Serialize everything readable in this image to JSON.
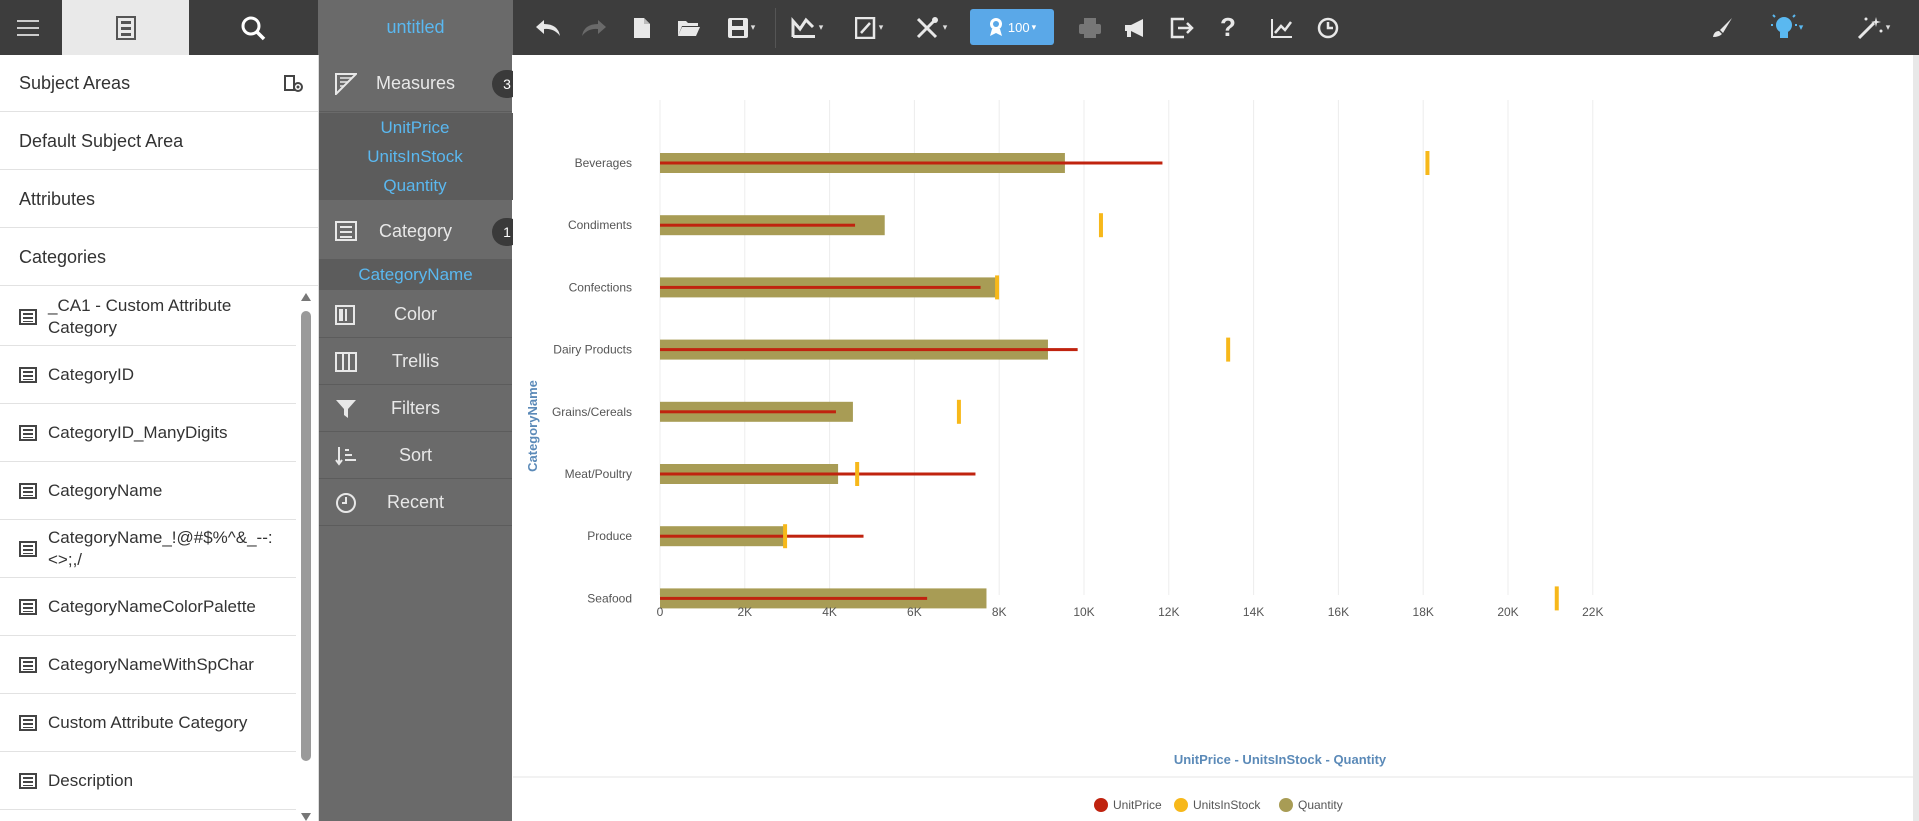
{
  "toolbar": {
    "title": "untitled",
    "perf_value": "100"
  },
  "sidebar": {
    "rows": [
      "Subject Areas",
      "Default Subject Area",
      "Attributes",
      "Categories"
    ],
    "items": [
      "_CA1 - Custom Attribute Category",
      "CategoryID",
      "CategoryID_ManyDigits",
      "CategoryName",
      "CategoryName_!@#$%^&_--:<>;,/",
      "CategoryNameColorPalette",
      "CategoryNameWithSpChar",
      "Custom Attribute Category",
      "Description"
    ]
  },
  "shelf": {
    "measures_label": "Measures",
    "measures_count": "3",
    "measures": [
      "UnitPrice",
      "UnitsInStock",
      "Quantity"
    ],
    "category_label": "Category",
    "category_count": "1",
    "category_field": "CategoryName",
    "color_label": "Color",
    "trellis_label": "Trellis",
    "filters_label": "Filters",
    "sort_label": "Sort",
    "recent_label": "Recent"
  },
  "colors": {
    "unitprice": "#c0230f",
    "unitsinstock": "#f7b81a",
    "quantity": "#a89c55"
  },
  "chart_data": {
    "type": "bar",
    "orientation": "horizontal",
    "categories": [
      "Beverages",
      "Condiments",
      "Confections",
      "Dairy Products",
      "Grains/Cereals",
      "Meat/Poultry",
      "Produce",
      "Seafood"
    ],
    "series": [
      {
        "name": "UnitPrice",
        "values": [
          11850,
          4600,
          7560,
          9850,
          4150,
          7440,
          4800,
          6300
        ]
      },
      {
        "name": "UnitsInStock",
        "values": [
          18100,
          10400,
          7950,
          13400,
          7050,
          4650,
          2950,
          21150
        ]
      },
      {
        "name": "Quantity",
        "values": [
          9550,
          5300,
          7950,
          9150,
          4550,
          4200,
          2950,
          7700
        ]
      }
    ],
    "xlabel": "UnitPrice - UnitsInStock - Quantity",
    "ylabel": "CategoryName",
    "xticks": [
      "0",
      "2K",
      "4K",
      "6K",
      "8K",
      "10K",
      "12K",
      "14K",
      "16K",
      "18K",
      "20K",
      "22K"
    ],
    "xlim": [
      0,
      23000
    ],
    "grid": true,
    "legend": "bottom-center"
  }
}
